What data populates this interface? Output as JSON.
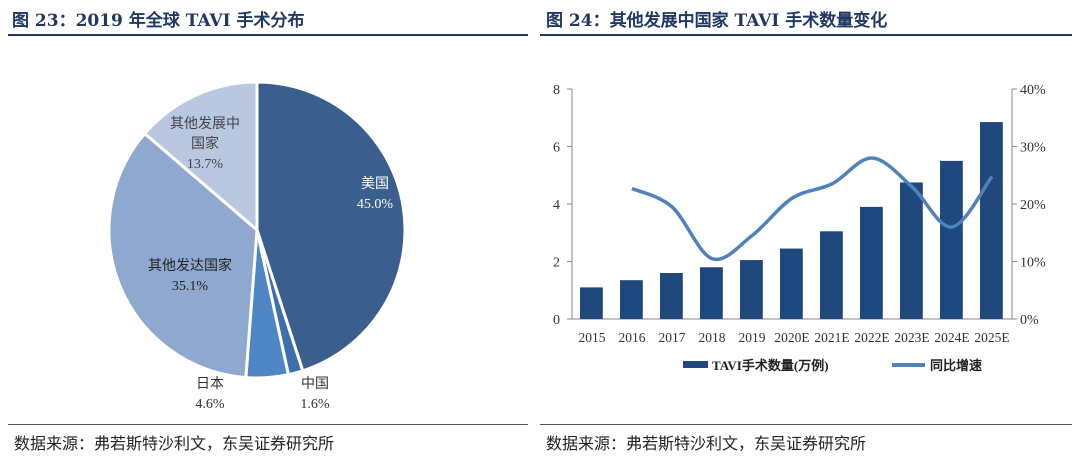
{
  "left": {
    "title": "图 23：2019 年全球 TAVI 手术分布",
    "source": "数据来源：弗若斯特沙利文，东吴证券研究所"
  },
  "right": {
    "title": "图 24：其他发展中国家 TAVI 手术数量变化",
    "source": "数据来源：弗若斯特沙利文，东吴证券研究所"
  },
  "chart_data": [
    {
      "type": "pie",
      "title": "图 23：2019 年全球 TAVI 手术分布",
      "slices": [
        {
          "label": "美国",
          "value": 45.0,
          "display": "45.0%",
          "color": "#3a5f8f"
        },
        {
          "label": "中国",
          "value": 1.6,
          "display": "1.6%",
          "color": "#3d6fae"
        },
        {
          "label": "日本",
          "value": 4.6,
          "display": "4.6%",
          "color": "#4f86c6"
        },
        {
          "label": "其他发达国家",
          "value": 35.1,
          "display": "35.1%",
          "color": "#8fa8d0"
        },
        {
          "label": "其他发展中国家",
          "value": 13.7,
          "display": "13.7%",
          "color": "#b9c7e0"
        }
      ]
    },
    {
      "type": "bar+line",
      "title": "图 24：其他发展中国家 TAVI 手术数量变化",
      "categories": [
        "2015",
        "2016",
        "2017",
        "2018",
        "2019",
        "2020E",
        "2021E",
        "2022E",
        "2023E",
        "2024E",
        "2025E"
      ],
      "series": [
        {
          "name": "TAVI手术数量(万例)",
          "type": "bar",
          "axis": "left",
          "color": "#1f497d",
          "values": [
            1.1,
            1.35,
            1.6,
            1.8,
            2.05,
            2.45,
            3.05,
            3.9,
            4.75,
            5.5,
            6.85
          ]
        },
        {
          "name": "同比增速",
          "type": "line",
          "axis": "right",
          "color": "#4f81bd",
          "values": [
            null,
            22.7,
            19.5,
            10.5,
            14.5,
            21.0,
            23.5,
            28.0,
            23.0,
            16.0,
            24.8
          ]
        }
      ],
      "ylim": [
        0,
        8
      ],
      "yticks": [
        "0",
        "2",
        "4",
        "6",
        "8"
      ],
      "y2lim": [
        0,
        40
      ],
      "y2ticks": [
        "0%",
        "10%",
        "20%",
        "30%",
        "40%"
      ],
      "legend": "bottom",
      "grid": false
    }
  ]
}
